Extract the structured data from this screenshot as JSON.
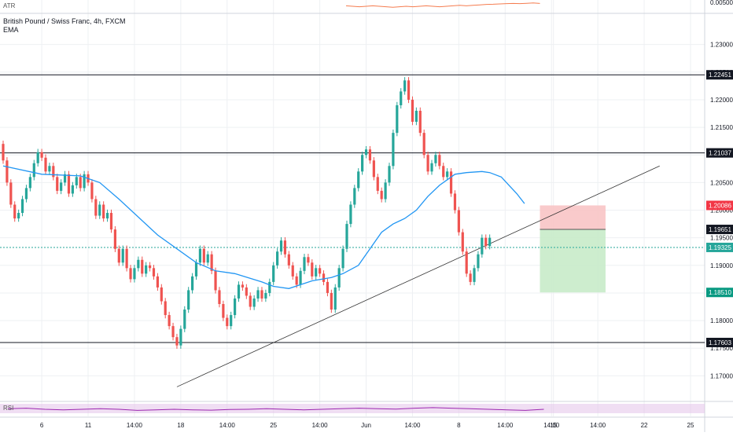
{
  "header": {
    "title": "British Pound / Swiss Franc, 4h, FXCM",
    "indicator_ema": "EMA",
    "indicator_atr": "ATR",
    "indicator_rsi": "RSI"
  },
  "colors": {
    "bull": "#26a69a",
    "bear": "#ef5350",
    "ema": "#2196f3",
    "atr": "#f57c4f",
    "rsi": "#9c27b0",
    "rsi_band": "#e1bee7",
    "grid": "#eef0f3",
    "line": "#131722",
    "stop_zone": "#f8c4c5",
    "target_zone": "#c8ebc9",
    "current_price_line": "#26a69a"
  },
  "chart_data": {
    "type": "candlestick",
    "title": "British Pound / Swiss Franc, 4h, FXCM",
    "ylim": [
      1.1655,
      1.2355
    ],
    "y_ticks": [
      "1.23000",
      "1.22500",
      "1.22000",
      "1.21500",
      "1.21000",
      "1.20500",
      "1.20000",
      "1.19500",
      "1.19000",
      "1.18500",
      "1.18000",
      "1.17500",
      "1.17000"
    ],
    "x_ticks": [
      {
        "label": "6",
        "index": 10
      },
      {
        "label": "11",
        "index": 22
      },
      {
        "label": "14:00",
        "index": 34
      },
      {
        "label": "18",
        "index": 46
      },
      {
        "label": "14:00",
        "index": 58
      },
      {
        "label": "25",
        "index": 70
      },
      {
        "label": "14:00",
        "index": 82
      },
      {
        "label": "Jun",
        "index": 94
      },
      {
        "label": "14:00",
        "index": 106
      },
      {
        "label": "8",
        "index": 118
      },
      {
        "label": "14:00",
        "index": 130
      },
      {
        "label": "14:00",
        "index": 142
      },
      {
        "label": "15",
        "index": 142.5
      },
      {
        "label": "14:00",
        "index": 154
      },
      {
        "label": "22",
        "index": 166
      },
      {
        "label": "25",
        "index": 178
      }
    ],
    "candles": [
      [
        1.212,
        1.209
      ],
      [
        1.209,
        1.205
      ],
      [
        1.205,
        1.201
      ],
      [
        1.201,
        1.1985
      ],
      [
        1.1985,
        1.1995
      ],
      [
        1.1995,
        1.202
      ],
      [
        1.202,
        1.204
      ],
      [
        1.204,
        1.206
      ],
      [
        1.206,
        1.2085
      ],
      [
        1.2085,
        1.2105
      ],
      [
        1.2105,
        1.2095
      ],
      [
        1.2095,
        1.207
      ],
      [
        1.207,
        1.208
      ],
      [
        1.208,
        1.206
      ],
      [
        1.206,
        1.2035
      ],
      [
        1.2035,
        1.205
      ],
      [
        1.205,
        1.2065
      ],
      [
        1.2065,
        1.203
      ],
      [
        1.203,
        1.2045
      ],
      [
        1.2045,
        1.206
      ],
      [
        1.206,
        1.204
      ],
      [
        1.204,
        1.2065
      ],
      [
        1.2065,
        1.205
      ],
      [
        1.205,
        1.202
      ],
      [
        1.202,
        1.199
      ],
      [
        1.199,
        1.201
      ],
      [
        1.201,
        1.1985
      ],
      [
        1.1985,
        1.1995
      ],
      [
        1.1995,
        1.1965
      ],
      [
        1.1965,
        1.193
      ],
      [
        1.193,
        1.1905
      ],
      [
        1.1905,
        1.193
      ],
      [
        1.193,
        1.1895
      ],
      [
        1.1895,
        1.1875
      ],
      [
        1.1875,
        1.1895
      ],
      [
        1.1895,
        1.191
      ],
      [
        1.191,
        1.1885
      ],
      [
        1.1885,
        1.19
      ],
      [
        1.19,
        1.1895
      ],
      [
        1.1895,
        1.188
      ],
      [
        1.188,
        1.186
      ],
      [
        1.186,
        1.1835
      ],
      [
        1.1835,
        1.181
      ],
      [
        1.181,
        1.179
      ],
      [
        1.179,
        1.177
      ],
      [
        1.177,
        1.1755
      ],
      [
        1.1755,
        1.1785
      ],
      [
        1.1785,
        1.182
      ],
      [
        1.182,
        1.1855
      ],
      [
        1.1855,
        1.188
      ],
      [
        1.188,
        1.1905
      ],
      [
        1.1905,
        1.193
      ],
      [
        1.193,
        1.1905
      ],
      [
        1.1905,
        1.192
      ],
      [
        1.192,
        1.189
      ],
      [
        1.189,
        1.1855
      ],
      [
        1.1855,
        1.183
      ],
      [
        1.183,
        1.1805
      ],
      [
        1.1805,
        1.179
      ],
      [
        1.179,
        1.181
      ],
      [
        1.181,
        1.184
      ],
      [
        1.184,
        1.1865
      ],
      [
        1.1865,
        1.186
      ],
      [
        1.186,
        1.1845
      ],
      [
        1.1845,
        1.1825
      ],
      [
        1.1825,
        1.184
      ],
      [
        1.184,
        1.1855
      ],
      [
        1.1855,
        1.184
      ],
      [
        1.184,
        1.185
      ],
      [
        1.185,
        1.187
      ],
      [
        1.187,
        1.19
      ],
      [
        1.19,
        1.1925
      ],
      [
        1.1925,
        1.1945
      ],
      [
        1.1945,
        1.192
      ],
      [
        1.192,
        1.19
      ],
      [
        1.19,
        1.188
      ],
      [
        1.188,
        1.1865
      ],
      [
        1.1865,
        1.189
      ],
      [
        1.189,
        1.1915
      ],
      [
        1.1915,
        1.1905
      ],
      [
        1.1905,
        1.188
      ],
      [
        1.188,
        1.1895
      ],
      [
        1.1895,
        1.1885
      ],
      [
        1.1885,
        1.187
      ],
      [
        1.187,
        1.185
      ],
      [
        1.185,
        1.182
      ],
      [
        1.182,
        1.186
      ],
      [
        1.186,
        1.1895
      ],
      [
        1.1895,
        1.193
      ],
      [
        1.193,
        1.1975
      ],
      [
        1.1975,
        1.201
      ],
      [
        1.201,
        1.204
      ],
      [
        1.204,
        1.207
      ],
      [
        1.207,
        1.21
      ],
      [
        1.21,
        1.211
      ],
      [
        1.211,
        1.209
      ],
      [
        1.209,
        1.206
      ],
      [
        1.206,
        1.2035
      ],
      [
        1.2035,
        1.202
      ],
      [
        1.202,
        1.205
      ],
      [
        1.205,
        1.208
      ],
      [
        1.208,
        1.214
      ],
      [
        1.214,
        1.219
      ],
      [
        1.219,
        1.2215
      ],
      [
        1.2215,
        1.2235
      ],
      [
        1.2235,
        1.22
      ],
      [
        1.22,
        1.216
      ],
      [
        1.216,
        1.218
      ],
      [
        1.218,
        1.214
      ],
      [
        1.214,
        1.21
      ],
      [
        1.21,
        1.207
      ],
      [
        1.207,
        1.2085
      ],
      [
        1.2085,
        1.21
      ],
      [
        1.21,
        1.208
      ],
      [
        1.208,
        1.206
      ],
      [
        1.206,
        1.207
      ],
      [
        1.207,
        1.203
      ],
      [
        1.203,
        1.2
      ],
      [
        1.2,
        1.196
      ],
      [
        1.196,
        1.1925
      ],
      [
        1.1925,
        1.1885
      ],
      [
        1.1885,
        1.187
      ],
      [
        1.187,
        1.1895
      ],
      [
        1.1895,
        1.192
      ],
      [
        1.192,
        1.195
      ],
      [
        1.195,
        1.1935
      ],
      [
        1.1935,
        1.195
      ]
    ],
    "ema": [
      [
        0,
        1.208
      ],
      [
        10,
        1.2065
      ],
      [
        20,
        1.2062
      ],
      [
        25,
        1.205
      ],
      [
        30,
        1.202
      ],
      [
        40,
        1.1955
      ],
      [
        50,
        1.1905
      ],
      [
        55,
        1.189
      ],
      [
        60,
        1.1885
      ],
      [
        67,
        1.187
      ],
      [
        70,
        1.1862
      ],
      [
        74,
        1.1858
      ],
      [
        77,
        1.1865
      ],
      [
        80,
        1.1872
      ],
      [
        85,
        1.1878
      ],
      [
        88,
        1.1885
      ],
      [
        92,
        1.19
      ],
      [
        95,
        1.193
      ],
      [
        98,
        1.196
      ],
      [
        101,
        1.1975
      ],
      [
        104,
        1.1985
      ],
      [
        107,
        1.2
      ],
      [
        110,
        1.2025
      ],
      [
        113,
        1.2045
      ],
      [
        117,
        1.2065
      ],
      [
        120,
        1.2068
      ],
      [
        124,
        1.207
      ],
      [
        126,
        1.2068
      ],
      [
        129,
        1.206
      ],
      [
        131,
        1.2045
      ],
      [
        133,
        1.203
      ],
      [
        135,
        1.2012
      ]
    ],
    "horizontal_levels": [
      {
        "price": 1.22451,
        "label": "1.22451"
      },
      {
        "price": 1.21037,
        "label": "1.21037"
      },
      {
        "price": 1.17603,
        "label": "1.17603"
      }
    ],
    "current_price": {
      "price": 1.19325,
      "label": "1.19325"
    },
    "position": {
      "entry": 1.19651,
      "entry_label": "1.19651",
      "stop": 1.20086,
      "stop_label": "1.20086",
      "target": 1.1851,
      "target_label": "1.18510",
      "start_index": 139,
      "end_index": 156
    },
    "trendline": [
      [
        45,
        1.168
      ],
      [
        170,
        1.208
      ]
    ],
    "atr_label": "0.00500",
    "atr": [
      0.55,
      0.5,
      0.45,
      0.5,
      0.55,
      0.5,
      0.45,
      0.4,
      0.45,
      0.5,
      0.45,
      0.5,
      0.55,
      0.5,
      0.45,
      0.5,
      0.55,
      0.6,
      0.55,
      0.6,
      0.65,
      0.7,
      0.72,
      0.75,
      0.78,
      0.8,
      0.78,
      0.82,
      0.85,
      0.8
    ],
    "rsi": [
      0.55,
      0.6,
      0.5,
      0.45,
      0.5,
      0.55,
      0.5,
      0.4,
      0.45,
      0.5,
      0.45,
      0.42,
      0.48,
      0.5,
      0.55,
      0.5,
      0.45,
      0.5,
      0.55,
      0.6,
      0.55,
      0.52,
      0.6,
      0.65,
      0.6,
      0.55,
      0.5,
      0.45,
      0.4,
      0.5
    ]
  }
}
